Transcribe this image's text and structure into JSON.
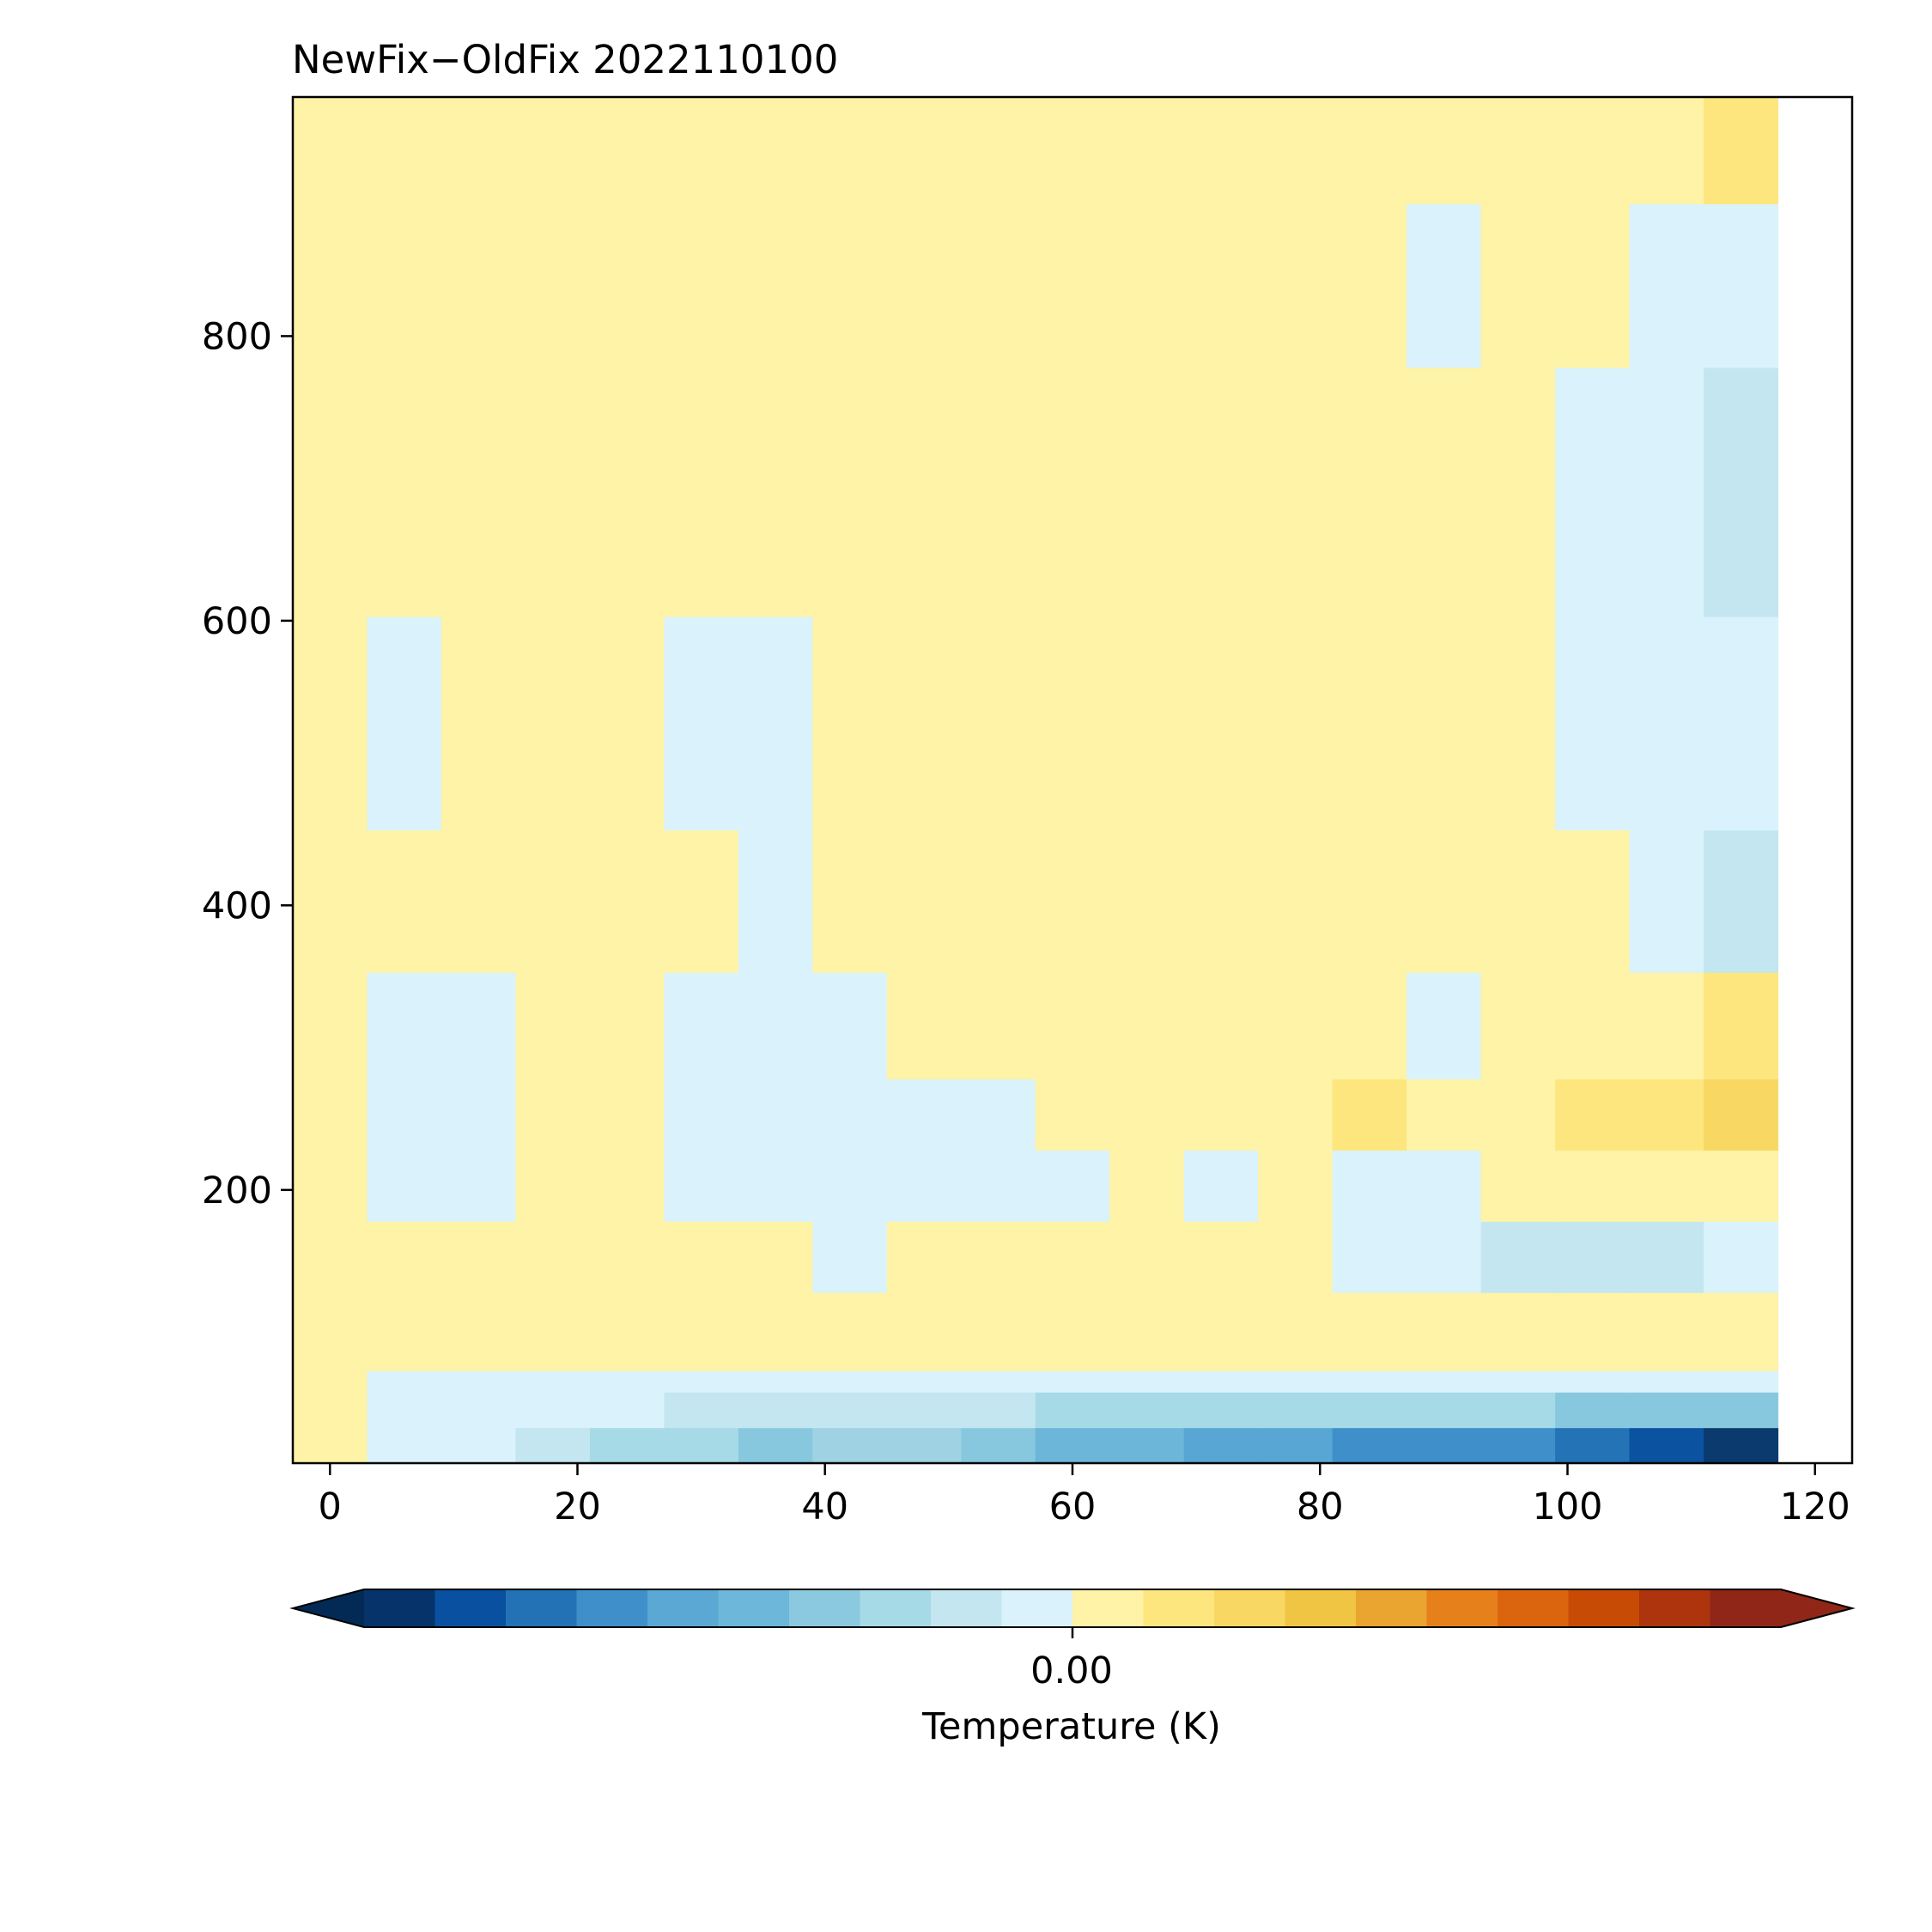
{
  "chart_data": {
    "type": "heatmap",
    "title": "NewFix−OldFix 2022110100",
    "xlabel": "",
    "ylabel": "",
    "xlim": [
      -3,
      123
    ],
    "ylim": [
      8,
      968
    ],
    "x_ticks": [
      0,
      20,
      40,
      60,
      80,
      100,
      120
    ],
    "y_ticks": [
      200,
      400,
      600,
      800
    ],
    "x_edges": [
      -3,
      3,
      9,
      15,
      21,
      27,
      33,
      39,
      45,
      51,
      57,
      63,
      69,
      75,
      81,
      87,
      93,
      99,
      105,
      111,
      117,
      123
    ],
    "y_edges": [
      8,
      33,
      58,
      73,
      128,
      178,
      228,
      278,
      353,
      453,
      603,
      778,
      893,
      968
    ],
    "values": [
      [
        2,
        -1,
        -1,
        -2,
        -3,
        -3,
        -4,
        -5,
        -5,
        -6,
        -7,
        -7,
        -8,
        -8,
        -9,
        -9,
        -9,
        -10,
        -11,
        -12
      ],
      [
        2,
        -1,
        -1,
        -1,
        -1,
        -2,
        -2,
        -2,
        -2,
        -2,
        -3,
        -3,
        -3,
        -3,
        -3,
        -3,
        -3,
        -4,
        -4,
        -4
      ],
      [
        2,
        -1,
        -1,
        -1,
        -1,
        -1,
        -1,
        -1,
        -1,
        -1,
        -1,
        -1,
        -1,
        -1,
        -1,
        -1,
        -1,
        -1,
        -1,
        -1
      ],
      [
        2,
        2,
        2,
        2,
        2,
        2,
        2,
        2,
        2,
        2,
        2,
        2,
        2,
        2,
        2,
        2,
        2,
        2,
        2,
        2
      ],
      [
        2,
        2,
        2,
        2,
        2,
        2,
        2,
        -1,
        2,
        2,
        2,
        2,
        2,
        2,
        -1,
        -1,
        -2,
        -2,
        -2,
        -1
      ],
      [
        2,
        -1,
        -1,
        2,
        2,
        -1,
        -1,
        -1,
        -1,
        -1,
        -1,
        2,
        -1,
        2,
        -1,
        -1,
        2,
        2,
        2,
        2
      ],
      [
        2,
        -1,
        -1,
        2,
        2,
        -1,
        -1,
        -1,
        -1,
        -1,
        2,
        2,
        2,
        2,
        3,
        2,
        2,
        3,
        3,
        4
      ],
      [
        2,
        -1,
        -1,
        2,
        2,
        -1,
        -1,
        -1,
        2,
        2,
        2,
        2,
        2,
        2,
        2,
        -1,
        2,
        2,
        2,
        3
      ],
      [
        2,
        2,
        2,
        2,
        2,
        2,
        -1,
        2,
        2,
        2,
        2,
        2,
        2,
        2,
        2,
        2,
        2,
        2,
        -1,
        -2
      ],
      [
        2,
        -1,
        2,
        2,
        2,
        -1,
        -1,
        2,
        2,
        2,
        2,
        2,
        2,
        2,
        2,
        2,
        2,
        -1,
        -1,
        -1
      ],
      [
        2,
        2,
        2,
        2,
        2,
        2,
        2,
        2,
        2,
        2,
        2,
        2,
        2,
        2,
        2,
        2,
        2,
        -1,
        -1,
        -2
      ],
      [
        2,
        2,
        2,
        2,
        2,
        2,
        2,
        2,
        2,
        2,
        2,
        2,
        2,
        2,
        2,
        -1,
        2,
        2,
        -1,
        -1
      ],
      [
        2,
        2,
        2,
        2,
        2,
        2,
        2,
        2,
        2,
        2,
        2,
        2,
        2,
        2,
        2,
        2,
        2,
        2,
        2,
        3
      ]
    ],
    "value_colors": {
      "-12": "#0b3a6e",
      "-11": "#0b52a0",
      "-10": "#2473b6",
      "-9": "#3f8fcb",
      "-8": "#58a6d3",
      "-7": "#6cb6da",
      "-6": "#88c8df",
      "-5": "#9fd3e3",
      "-4": "#88c8df",
      "-3": "#a6dae6",
      "-2": "#c3e6f0",
      "-1": "#daf2fb",
      "2": "#fef3a6",
      "3": "#fde67e",
      "4": "#f8d863"
    },
    "colorbar": {
      "label": "Temperature (K)",
      "tick_label": "0.00",
      "extend": "both",
      "colors": [
        "#06336a",
        "#0a50a0",
        "#2372b6",
        "#3f8fcb",
        "#5aa8d3",
        "#6cb7da",
        "#8ac9df",
        "#a6dae6",
        "#c3e6f0",
        "#daf2fb",
        "#fef3a6",
        "#fde67e",
        "#f8d863",
        "#f1c544",
        "#e9a52f",
        "#e6801b",
        "#db640e",
        "#c84b05",
        "#ad340c",
        "#8f2618"
      ],
      "under_color": "#032a55",
      "over_color": "#8f2618"
    }
  }
}
